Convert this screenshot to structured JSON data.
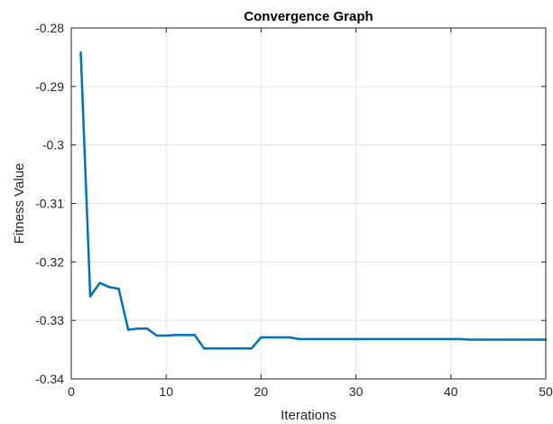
{
  "chart_data": {
    "type": "line",
    "title": "Convergence Graph",
    "xlabel": "Iterations",
    "ylabel": "Fitness Value",
    "xlim": [
      0,
      50
    ],
    "ylim": [
      -0.34,
      -0.28
    ],
    "xticks": [
      0,
      10,
      20,
      30,
      40,
      50
    ],
    "xtick_labels": [
      "0",
      "10",
      "20",
      "30",
      "40",
      "50"
    ],
    "yticks": [
      -0.28,
      -0.29,
      -0.3,
      -0.31,
      -0.32,
      -0.33,
      -0.34
    ],
    "ytick_labels": [
      "-0.28",
      "-0.29",
      "-0.3",
      "-0.31",
      "-0.32",
      "-0.33",
      "-0.34"
    ],
    "grid": true,
    "line_color": "#0072BD",
    "series": [
      {
        "x": [
          1,
          2,
          3,
          4,
          5,
          6,
          7,
          8,
          9,
          10,
          11,
          12,
          13,
          14,
          15,
          16,
          17,
          18,
          19,
          20,
          21,
          22,
          23,
          24,
          25,
          26,
          27,
          28,
          29,
          30,
          31,
          32,
          33,
          34,
          35,
          36,
          37,
          38,
          39,
          40,
          41,
          42,
          43,
          44,
          45,
          46,
          47,
          48,
          49,
          50
        ],
        "values": [
          -0.2842,
          -0.3259,
          -0.3236,
          -0.3243,
          -0.3246,
          -0.3316,
          -0.3314,
          -0.3314,
          -0.3326,
          -0.3326,
          -0.3325,
          -0.3325,
          -0.3325,
          -0.3348,
          -0.3348,
          -0.3348,
          -0.3348,
          -0.3348,
          -0.3348,
          -0.3329,
          -0.3329,
          -0.3329,
          -0.3329,
          -0.3332,
          -0.3332,
          -0.3332,
          -0.3332,
          -0.3332,
          -0.3332,
          -0.3332,
          -0.3332,
          -0.3332,
          -0.3332,
          -0.3332,
          -0.3332,
          -0.3332,
          -0.3332,
          -0.3332,
          -0.3332,
          -0.3332,
          -0.3332,
          -0.3333,
          -0.3333,
          -0.3333,
          -0.3333,
          -0.3333,
          -0.3333,
          -0.3333,
          -0.3333,
          -0.3333
        ]
      }
    ]
  }
}
